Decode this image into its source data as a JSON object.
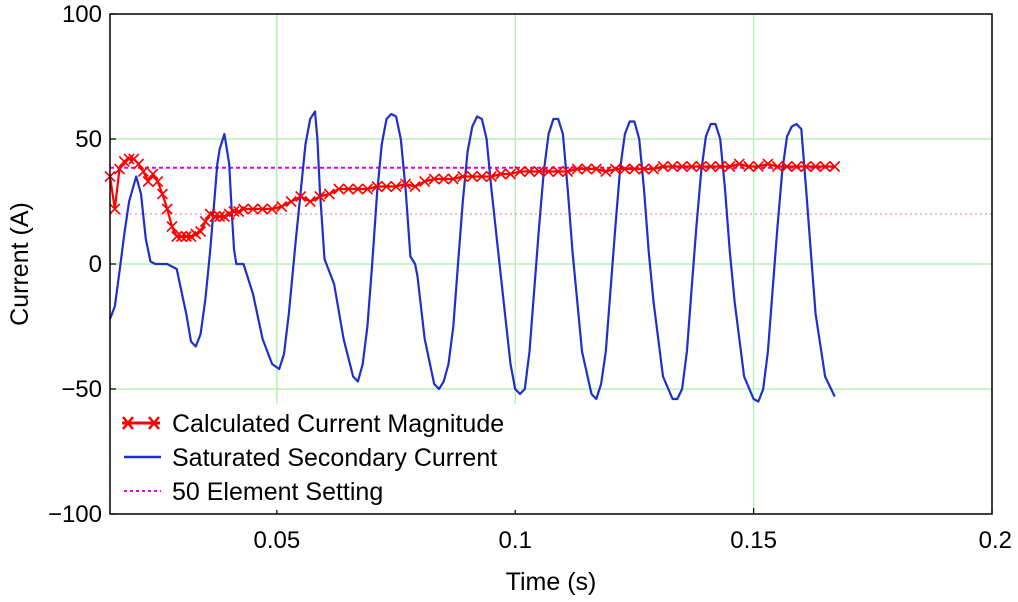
{
  "chart_data": {
    "type": "line",
    "xlabel": "Time (s)",
    "ylabel": "Current (A)",
    "xlim": [
      0.015,
      0.2
    ],
    "ylim": [
      -100,
      100
    ],
    "x_ticks": [
      0.05,
      0.1,
      0.15,
      0.2
    ],
    "x_tick_labels": [
      "0.05",
      "0.1",
      "0.15",
      "0.2"
    ],
    "y_ticks": [
      -100,
      -50,
      0,
      50,
      100
    ],
    "y_tick_labels": [
      "−100",
      "−50",
      "0",
      "50",
      "100"
    ],
    "grid": true,
    "legend_position": "bottom-left",
    "colors": {
      "grid": "#b5f0b5",
      "calculated": "#ff0000",
      "saturated": "#1f2fcc",
      "setting": "#e600e6",
      "setting_faint": "#f0a0c0"
    },
    "series": [
      {
        "name": "Calculated Current Magnitude",
        "style": "line-x-markers",
        "x": [
          0.015,
          0.016,
          0.017,
          0.018,
          0.019,
          0.02,
          0.021,
          0.022,
          0.023,
          0.024,
          0.025,
          0.026,
          0.027,
          0.028,
          0.029,
          0.03,
          0.031,
          0.032,
          0.033,
          0.034,
          0.035,
          0.036,
          0.037,
          0.038,
          0.039,
          0.04,
          0.041,
          0.042,
          0.043,
          0.045,
          0.047,
          0.049,
          0.051,
          0.053,
          0.055,
          0.057,
          0.059,
          0.061,
          0.063,
          0.065,
          0.067,
          0.069,
          0.071,
          0.073,
          0.075,
          0.077,
          0.079,
          0.081,
          0.083,
          0.085,
          0.087,
          0.089,
          0.091,
          0.093,
          0.095,
          0.097,
          0.099,
          0.101,
          0.103,
          0.105,
          0.107,
          0.109,
          0.111,
          0.113,
          0.115,
          0.117,
          0.119,
          0.121,
          0.123,
          0.125,
          0.127,
          0.129,
          0.131,
          0.133,
          0.135,
          0.137,
          0.139,
          0.141,
          0.143,
          0.145,
          0.147,
          0.149,
          0.151,
          0.153,
          0.155,
          0.157,
          0.159,
          0.161,
          0.163,
          0.165,
          0.167
        ],
        "y": [
          35,
          22,
          38,
          41,
          42,
          42,
          40,
          37,
          33,
          36,
          33,
          28,
          22,
          15,
          11,
          11,
          11,
          11,
          12,
          13,
          17,
          20,
          19,
          19,
          19,
          20,
          21,
          21,
          22,
          22,
          22,
          22,
          23,
          25,
          27,
          25,
          27,
          28,
          30,
          30,
          30,
          30,
          31,
          31,
          31,
          32,
          31,
          33,
          34,
          34,
          34,
          35,
          35,
          35,
          35,
          36,
          36,
          37,
          37,
          37,
          37,
          37,
          37,
          38,
          38,
          38,
          37,
          38,
          38,
          38,
          38,
          38,
          39,
          39,
          39,
          39,
          39,
          39,
          39,
          39,
          40,
          39,
          39,
          40,
          39,
          39,
          39,
          39,
          39,
          39,
          39
        ]
      },
      {
        "name": "Saturated Secondary Current",
        "style": "line",
        "x": [
          0.015,
          0.016,
          0.017,
          0.018,
          0.019,
          0.0205,
          0.0215,
          0.0225,
          0.0235,
          0.0245,
          0.0255,
          0.027,
          0.029,
          0.031,
          0.032,
          0.033,
          0.034,
          0.035,
          0.036,
          0.037,
          0.0375,
          0.038,
          0.039,
          0.04,
          0.0405,
          0.041,
          0.0415,
          0.042,
          0.043,
          0.045,
          0.047,
          0.049,
          0.0505,
          0.0515,
          0.0525,
          0.054,
          0.056,
          0.057,
          0.058,
          0.0585,
          0.059,
          0.06,
          0.062,
          0.064,
          0.066,
          0.067,
          0.068,
          0.069,
          0.07,
          0.071,
          0.072,
          0.073,
          0.074,
          0.075,
          0.076,
          0.077,
          0.078,
          0.079,
          0.0795,
          0.081,
          0.083,
          0.084,
          0.085,
          0.086,
          0.087,
          0.088,
          0.089,
          0.09,
          0.091,
          0.092,
          0.093,
          0.094,
          0.095,
          0.097,
          0.099,
          0.1,
          0.101,
          0.102,
          0.103,
          0.104,
          0.105,
          0.106,
          0.107,
          0.108,
          0.109,
          0.11,
          0.111,
          0.112,
          0.114,
          0.116,
          0.117,
          0.118,
          0.119,
          0.12,
          0.121,
          0.122,
          0.123,
          0.124,
          0.125,
          0.126,
          0.127,
          0.128,
          0.129,
          0.131,
          0.133,
          0.134,
          0.135,
          0.136,
          0.137,
          0.138,
          0.139,
          0.14,
          0.141,
          0.142,
          0.143,
          0.144,
          0.145,
          0.146,
          0.148,
          0.15,
          0.151,
          0.152,
          0.153,
          0.154,
          0.155,
          0.156,
          0.157,
          0.158,
          0.159,
          0.16,
          0.161,
          0.162,
          0.163,
          0.165,
          0.167
        ],
        "y": [
          -22,
          -17,
          -3,
          12,
          25,
          35,
          28,
          10,
          1,
          0,
          0,
          0,
          -2,
          -20,
          -31,
          -33,
          -28,
          -14,
          5,
          28,
          40,
          46,
          52,
          40,
          22,
          6,
          0,
          0,
          0,
          -12,
          -30,
          -40,
          -42,
          -36,
          -20,
          10,
          48,
          58,
          61,
          50,
          30,
          2,
          -8,
          -30,
          -45,
          -47,
          -40,
          -25,
          0,
          28,
          48,
          58,
          60,
          59,
          50,
          30,
          3,
          0,
          -5,
          -30,
          -48,
          -50,
          -47,
          -40,
          -25,
          0,
          25,
          45,
          55,
          59,
          58,
          50,
          30,
          -5,
          -40,
          -50,
          -52,
          -50,
          -35,
          -10,
          15,
          37,
          52,
          58,
          58,
          52,
          30,
          5,
          -35,
          -52,
          -54,
          -48,
          -35,
          -10,
          15,
          38,
          52,
          57,
          57,
          50,
          30,
          5,
          -15,
          -45,
          -54,
          -54,
          -50,
          -35,
          -10,
          15,
          37,
          51,
          56,
          56,
          50,
          30,
          5,
          -15,
          -45,
          -54,
          -55,
          -50,
          -35,
          -10,
          15,
          37,
          51,
          55,
          56,
          54,
          30,
          5,
          -20,
          -45,
          -53
        ]
      },
      {
        "name": "50 Element Setting",
        "style": "dashed",
        "x": [
          0.015,
          0.167
        ],
        "y": [
          38.5,
          38.5
        ],
        "faint_level": 20,
        "faint_x": [
          0.015,
          0.2
        ]
      }
    ]
  }
}
